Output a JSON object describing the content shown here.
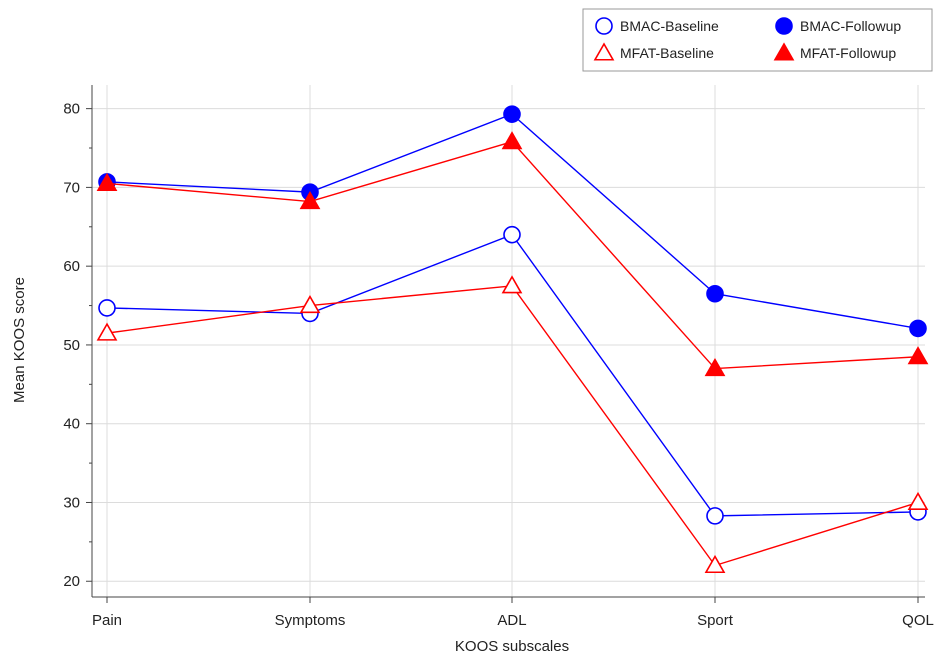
{
  "chart_data": {
    "type": "line",
    "xlabel": "KOOS subscales",
    "ylabel": "Mean KOOS score",
    "categories": [
      "Pain",
      "Symptoms",
      "ADL",
      "Sport",
      "QOL"
    ],
    "ylim": [
      18,
      83
    ],
    "yticks": [
      20,
      30,
      40,
      50,
      60,
      70,
      80
    ],
    "grid": true,
    "legend_position": "top-right",
    "series": [
      {
        "name": "BMAC-Baseline",
        "color": "#0000ff",
        "marker": "circle-open",
        "values": [
          54.7,
          54.0,
          64.0,
          28.3,
          28.8
        ]
      },
      {
        "name": "BMAC-Followup",
        "color": "#0000ff",
        "marker": "circle-filled",
        "values": [
          70.7,
          69.4,
          79.3,
          56.5,
          52.1
        ]
      },
      {
        "name": "MFAT-Baseline",
        "color": "#ff0000",
        "marker": "triangle-open",
        "values": [
          51.5,
          55.0,
          57.5,
          22.0,
          30.0
        ]
      },
      {
        "name": "MFAT-Followup",
        "color": "#ff0000",
        "marker": "triangle-filled",
        "values": [
          70.5,
          68.2,
          75.8,
          47.0,
          48.5
        ]
      }
    ]
  }
}
